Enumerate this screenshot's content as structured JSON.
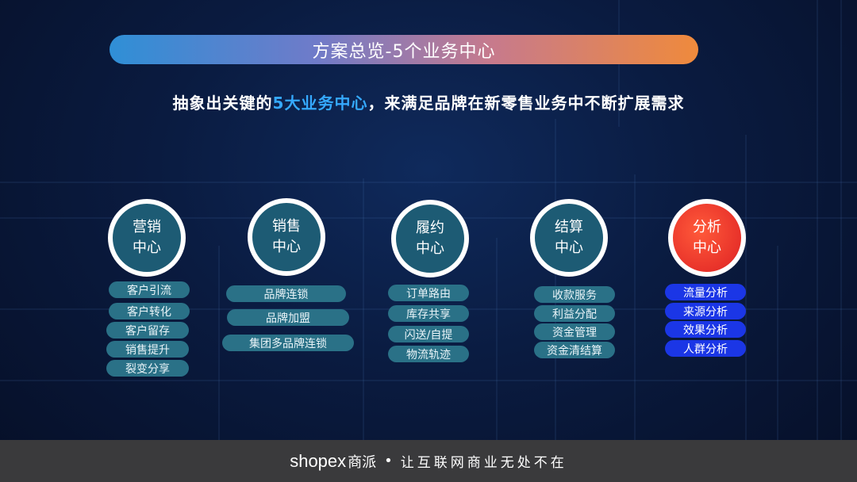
{
  "header": {
    "banner_title": "方案总览-5个业务中心",
    "subtitle_part1": "抽象出关键的",
    "subtitle_highlight": "5大业务中心",
    "subtitle_part2": "，来满足品牌在新零售业务中不断扩展需求"
  },
  "centers": [
    {
      "line1": "营销",
      "line2": "中心",
      "items": [
        "客户引流",
        "客户转化",
        "客户留存",
        "销售提升",
        "裂变分享"
      ]
    },
    {
      "line1": "销售",
      "line2": "中心",
      "items": [
        "品牌连锁",
        "品牌加盟",
        "集团多品牌连锁"
      ]
    },
    {
      "line1": "履约",
      "line2": "中心",
      "items": [
        "订单路由",
        "库存共享",
        "闪送/自提",
        "物流轨迹"
      ]
    },
    {
      "line1": "结算",
      "line2": "中心",
      "items": [
        "收款服务",
        "利益分配",
        "资金管理",
        "资金清结算"
      ]
    },
    {
      "line1": "分析",
      "line2": "中心",
      "items": [
        "流量分析",
        "来源分析",
        "效果分析",
        "人群分析"
      ]
    }
  ],
  "footer": {
    "logo_text": "shopex",
    "logo_cn": "商派",
    "separator": "•",
    "slogan": "让互联网商业无处不在"
  },
  "colors": {
    "center_circle": "#1d5b74",
    "analysis_circle": "#e8322a",
    "item_pill": "#2a7187",
    "analysis_pill": "#1b36e6",
    "highlight_text": "#35a9ff"
  }
}
